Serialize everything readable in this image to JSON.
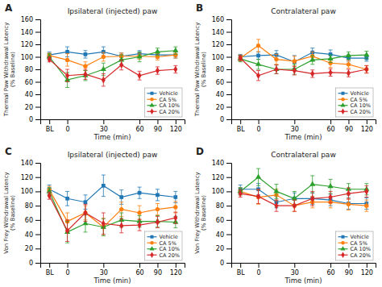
{
  "chart_data": [
    {
      "type": "line",
      "title": "Ipsilateral (injected) paw",
      "annotation": "A",
      "xlabel": "Time (min)",
      "ylabel": "Thermal Paw Withdrawal Latency\n(% Baseline)",
      "categories": [
        "BL",
        "0",
        null,
        "30",
        null,
        "60",
        "90",
        "120"
      ],
      "ylim": [
        0,
        160
      ],
      "yticks": [
        0,
        20,
        40,
        60,
        80,
        100,
        120,
        140,
        160
      ],
      "grid": false,
      "legend": "lower right",
      "series": [
        {
          "name": "Vehicle",
          "marker": "square",
          "values": [
            103,
            108,
            104,
            108,
            101,
            105,
            103,
            103
          ],
          "errors": [
            5,
            8,
            6,
            8,
            5,
            5,
            5,
            5
          ]
        },
        {
          "name": "CA 5%",
          "marker": "circle",
          "values": [
            102,
            95,
            85,
            100,
            101,
            101,
            100,
            103
          ],
          "errors": [
            4,
            10,
            7,
            7,
            5,
            5,
            5,
            5
          ]
        },
        {
          "name": "CA 10%",
          "marker": "triangle",
          "values": [
            100,
            63,
            70,
            80,
            95,
            100,
            108,
            110
          ],
          "errors": [
            5,
            12,
            8,
            10,
            8,
            8,
            6,
            6
          ]
        },
        {
          "name": "CA 20%",
          "marker": "diamond",
          "values": [
            96,
            70,
            72,
            63,
            87,
            70,
            78,
            80
          ],
          "errors": [
            4,
            10,
            8,
            10,
            8,
            7,
            6,
            6
          ]
        }
      ]
    },
    {
      "type": "line",
      "title": "Contralateral paw",
      "annotation": "B",
      "xlabel": "Time (min)",
      "ylabel": "Thermal Paw Withdrawal Latency\n(% Baseline)",
      "categories": [
        "BL",
        "0",
        null,
        "30",
        null,
        "60",
        "90",
        "120"
      ],
      "ylim": [
        0,
        160
      ],
      "yticks": [
        0,
        20,
        40,
        60,
        80,
        100,
        120,
        140,
        160
      ],
      "grid": false,
      "legend": "lower right",
      "series": [
        {
          "name": "Vehicle",
          "marker": "square",
          "values": [
            100,
            102,
            103,
            92,
            107,
            104,
            98,
            98
          ],
          "errors": [
            4,
            6,
            7,
            10,
            7,
            7,
            5,
            5
          ]
        },
        {
          "name": "CA 5%",
          "marker": "circle",
          "values": [
            98,
            118,
            96,
            93,
            101,
            90,
            88,
            80
          ],
          "errors": [
            5,
            10,
            8,
            8,
            7,
            7,
            6,
            6
          ]
        },
        {
          "name": "CA 10%",
          "marker": "triangle",
          "values": [
            97,
            88,
            80,
            80,
            95,
            97,
            102,
            103
          ],
          "errors": [
            5,
            8,
            7,
            8,
            7,
            6,
            6,
            6
          ]
        },
        {
          "name": "CA 20%",
          "marker": "diamond",
          "values": [
            98,
            70,
            80,
            78,
            73,
            75,
            74,
            80
          ],
          "errors": [
            4,
            8,
            7,
            7,
            6,
            6,
            6,
            6
          ]
        }
      ]
    },
    {
      "type": "line",
      "title": "Ipsilateral (injected) paw",
      "annotation": "C",
      "xlabel": "Time (min)",
      "ylabel": "Von Frey Withdrawal Latency\n(% Baseline)",
      "categories": [
        "BL",
        "0",
        null,
        "30",
        null,
        "60",
        "90",
        "120"
      ],
      "ylim": [
        0,
        140
      ],
      "yticks": [
        0,
        20,
        40,
        60,
        80,
        100,
        120,
        140
      ],
      "grid": false,
      "legend": "lower right",
      "series": [
        {
          "name": "Vehicle",
          "marker": "square",
          "values": [
            103,
            90,
            85,
            108,
            92,
            98,
            95,
            92
          ],
          "errors": [
            6,
            10,
            10,
            15,
            10,
            8,
            8,
            8
          ]
        },
        {
          "name": "CA 5%",
          "marker": "circle",
          "values": [
            102,
            58,
            70,
            50,
            75,
            70,
            75,
            78
          ],
          "errors": [
            5,
            12,
            10,
            12,
            10,
            10,
            8,
            8
          ]
        },
        {
          "name": "CA 10%",
          "marker": "triangle",
          "values": [
            100,
            43,
            55,
            50,
            60,
            58,
            58,
            57
          ],
          "errors": [
            5,
            15,
            12,
            12,
            10,
            8,
            8,
            8
          ]
        },
        {
          "name": "CA 20%",
          "marker": "diamond",
          "values": [
            94,
            45,
            70,
            55,
            52,
            53,
            57,
            63
          ],
          "errors": [
            5,
            15,
            12,
            15,
            10,
            8,
            8,
            8
          ]
        }
      ]
    },
    {
      "type": "line",
      "title": "Contralateral paw",
      "annotation": "D",
      "xlabel": "Time (min)",
      "ylabel": "Von Frey Withdrawal Latency\n(% Baseline)",
      "categories": [
        "BL",
        "0",
        null,
        "30",
        null,
        "60",
        "90",
        "120"
      ],
      "ylim": [
        0,
        140
      ],
      "yticks": [
        0,
        20,
        40,
        60,
        80,
        100,
        120,
        140
      ],
      "grid": false,
      "legend": "lower right",
      "series": [
        {
          "name": "Vehicle",
          "marker": "square",
          "values": [
            103,
            103,
            85,
            90,
            90,
            88,
            83,
            83
          ],
          "errors": [
            6,
            8,
            8,
            8,
            8,
            8,
            8,
            8
          ]
        },
        {
          "name": "CA 5%",
          "marker": "circle",
          "values": [
            100,
            92,
            95,
            80,
            85,
            85,
            82,
            80
          ],
          "errors": [
            5,
            10,
            8,
            8,
            8,
            8,
            8,
            8
          ]
        },
        {
          "name": "CA 10%",
          "marker": "triangle",
          "values": [
            100,
            120,
            100,
            90,
            110,
            107,
            103,
            103
          ],
          "errors": [
            5,
            12,
            10,
            10,
            12,
            10,
            8,
            8
          ]
        },
        {
          "name": "CA 20%",
          "marker": "diamond",
          "values": [
            97,
            93,
            80,
            80,
            90,
            92,
            97,
            100
          ],
          "errors": [
            5,
            10,
            8,
            8,
            10,
            8,
            8,
            8
          ]
        }
      ]
    }
  ]
}
